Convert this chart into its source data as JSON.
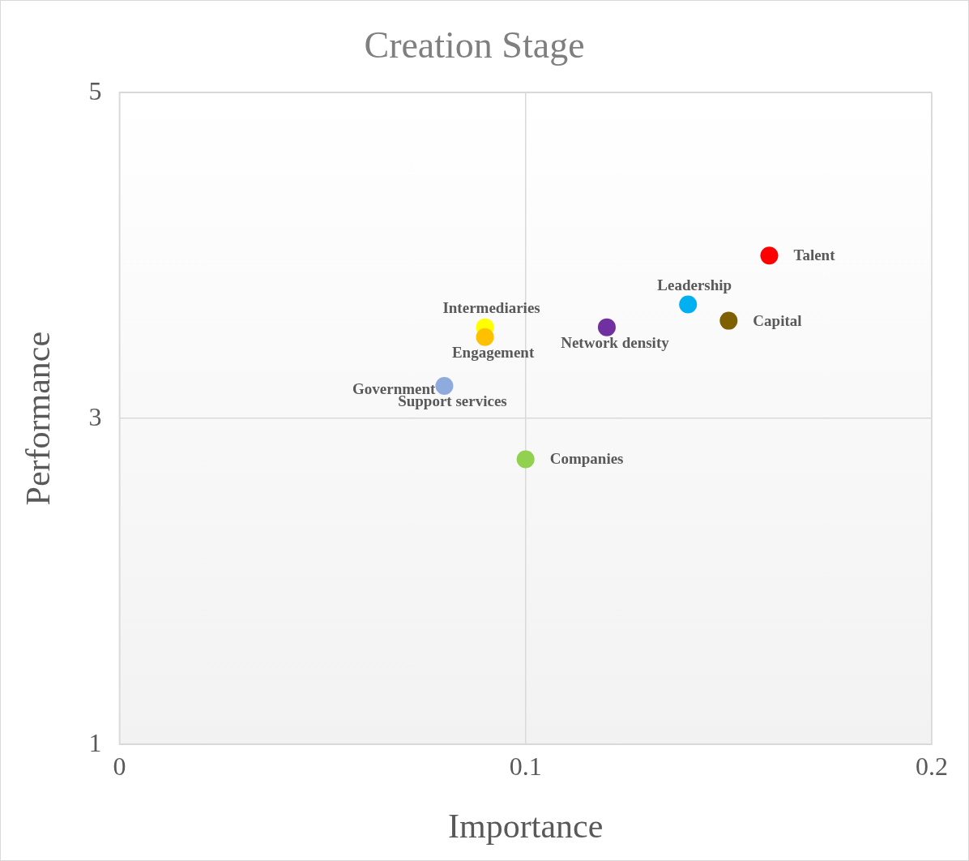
{
  "chart_data": {
    "type": "scatter",
    "title": "Creation Stage",
    "xlabel": "Importance",
    "ylabel": "Performance",
    "xlim": [
      0,
      0.2
    ],
    "xticks": [
      0,
      0.1,
      0.2
    ],
    "ylim": [
      1,
      5
    ],
    "yticks": [
      1,
      3,
      5
    ],
    "grid": true,
    "legend": false,
    "marker": "circle",
    "series": [
      {
        "name": "Talent",
        "color": "#ff0000",
        "x": [
          0.16
        ],
        "values": [
          4.0
        ]
      },
      {
        "name": "Leadership",
        "color": "#00b0f0",
        "x": [
          0.14
        ],
        "values": [
          3.7
        ]
      },
      {
        "name": "Capital",
        "color": "#7f6000",
        "x": [
          0.15
        ],
        "values": [
          3.6
        ]
      },
      {
        "name": "Network density",
        "color": "#7030a0",
        "x": [
          0.12
        ],
        "values": [
          3.56
        ]
      },
      {
        "name": "Engagement",
        "color": "#ffc000",
        "x": [
          0.09
        ],
        "values": [
          3.5
        ]
      },
      {
        "name": "Intermediaries",
        "color": "#ffff00",
        "x": [
          0.09
        ],
        "values": [
          3.56
        ]
      },
      {
        "name": "Government",
        "color": "#8faadc",
        "x": [
          0.08
        ],
        "values": [
          3.2
        ]
      },
      {
        "name": "Support services",
        "values": [
          null
        ]
      },
      {
        "name": "Companies",
        "color": "#92d050",
        "x": [
          0.1
        ],
        "values": [
          2.75
        ]
      }
    ]
  }
}
